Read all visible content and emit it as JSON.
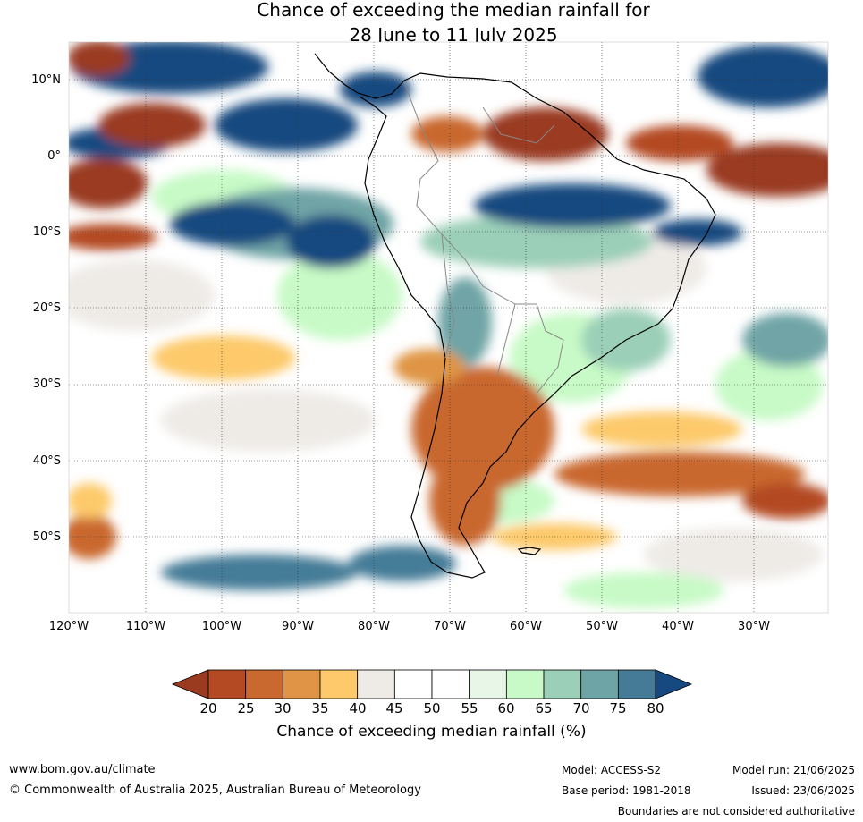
{
  "title": {
    "line1": "Chance of exceeding the median rainfall for",
    "line2": "28 June to 11 July 2025"
  },
  "map": {
    "lat_labels": [
      "10°N",
      "0°",
      "10°S",
      "20°S",
      "30°S",
      "40°S",
      "50°S"
    ],
    "lon_labels": [
      "120°W",
      "110°W",
      "100°W",
      "90°W",
      "80°W",
      "70°W",
      "60°W",
      "50°W",
      "40°W",
      "30°W"
    ]
  },
  "colorbar": {
    "ticks": [
      "20",
      "25",
      "30",
      "35",
      "40",
      "45",
      "50",
      "55",
      "60",
      "65",
      "70",
      "75",
      "80"
    ],
    "colors": [
      "#9a3b20",
      "#b34a24",
      "#c9682f",
      "#df9545",
      "#fdc96a",
      "#eeebe7",
      "#ffffff",
      "#ffffff",
      "#e7f6e6",
      "#c7fac6",
      "#9bcfb8",
      "#6fa4a6",
      "#457b97",
      "#15497f"
    ],
    "label": "Chance of exceeding median rainfall (%)"
  },
  "footer": {
    "url": "www.bom.gov.au/climate",
    "copyright": "© Commonwealth of Australia 2025, Australian Bureau of Meteorology",
    "model": "Model: ACCESS-S2",
    "base_period": "Base period: 1981-2018",
    "model_run": "Model run: 21/06/2025",
    "issued": "Issued: 23/06/2025",
    "boundaries": "Boundaries are not considered authoritative"
  }
}
